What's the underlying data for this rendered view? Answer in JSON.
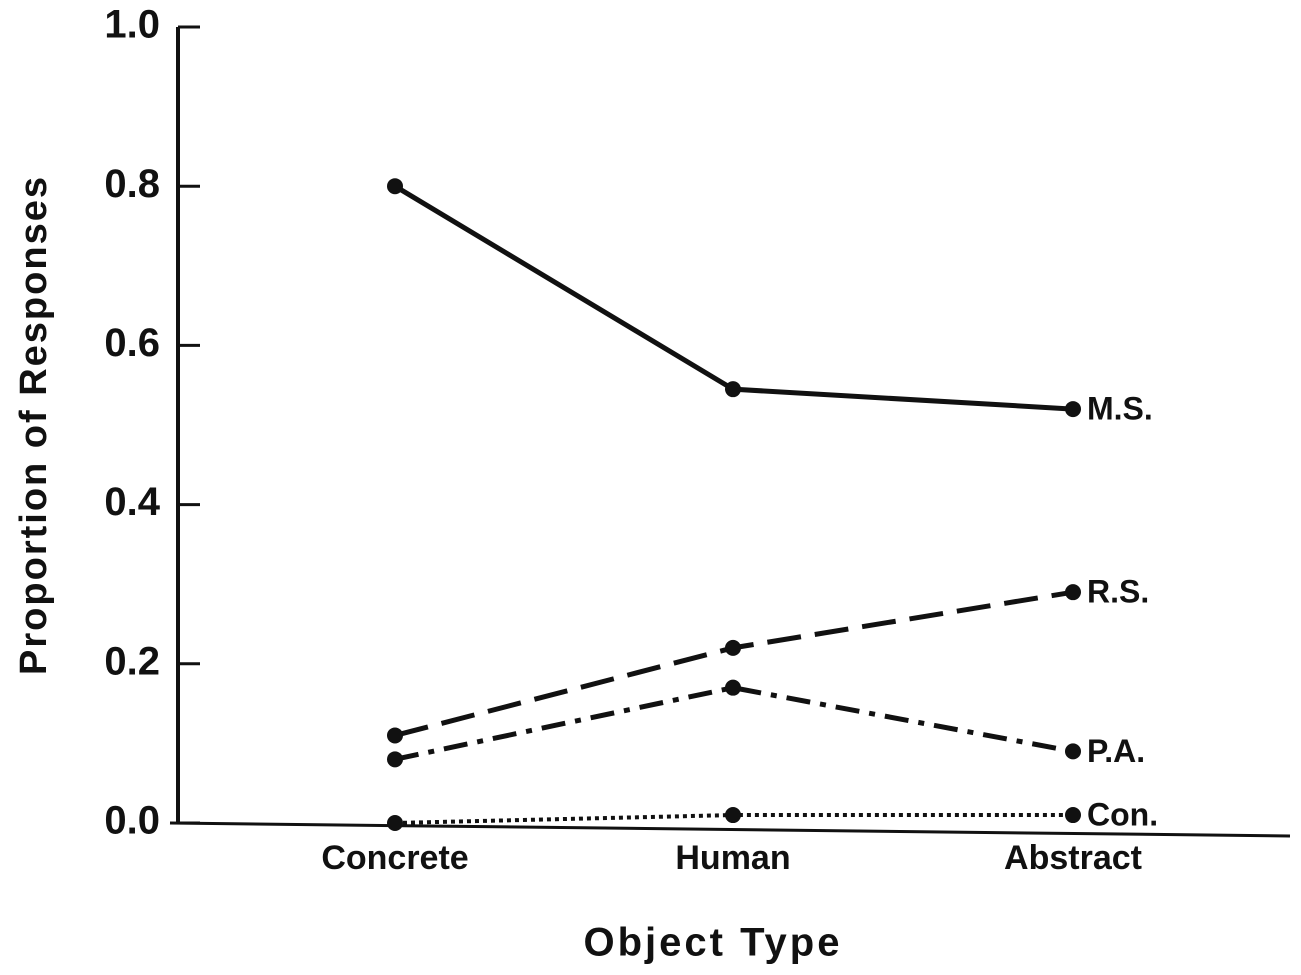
{
  "chart_data": {
    "type": "line",
    "x_label": "Object Type",
    "y_label": "Proportion of Responses",
    "categories": [
      "Concrete",
      "Human",
      "Abstract"
    ],
    "series": [
      {
        "name": "M.S.",
        "color": "#111111",
        "style": "solid",
        "values": [
          0.8,
          0.545,
          0.52
        ]
      },
      {
        "name": "R.S.",
        "color": "#111111",
        "style": "dashed",
        "values": [
          0.11,
          0.22,
          0.29
        ]
      },
      {
        "name": "P.A.",
        "color": "#111111",
        "style": "dashdot",
        "values": [
          0.08,
          0.17,
          0.09
        ]
      },
      {
        "name": "Con.",
        "color": "#111111",
        "style": "dotted",
        "values": [
          0.0,
          0.01,
          0.01
        ]
      }
    ],
    "ylim": [
      0,
      1
    ],
    "yticks": [
      {
        "value": 0,
        "label": "0.0"
      },
      0.2,
      0.4,
      0.6,
      0.8,
      {
        "value": 1,
        "label": "1.0"
      }
    ],
    "grid": false
  }
}
